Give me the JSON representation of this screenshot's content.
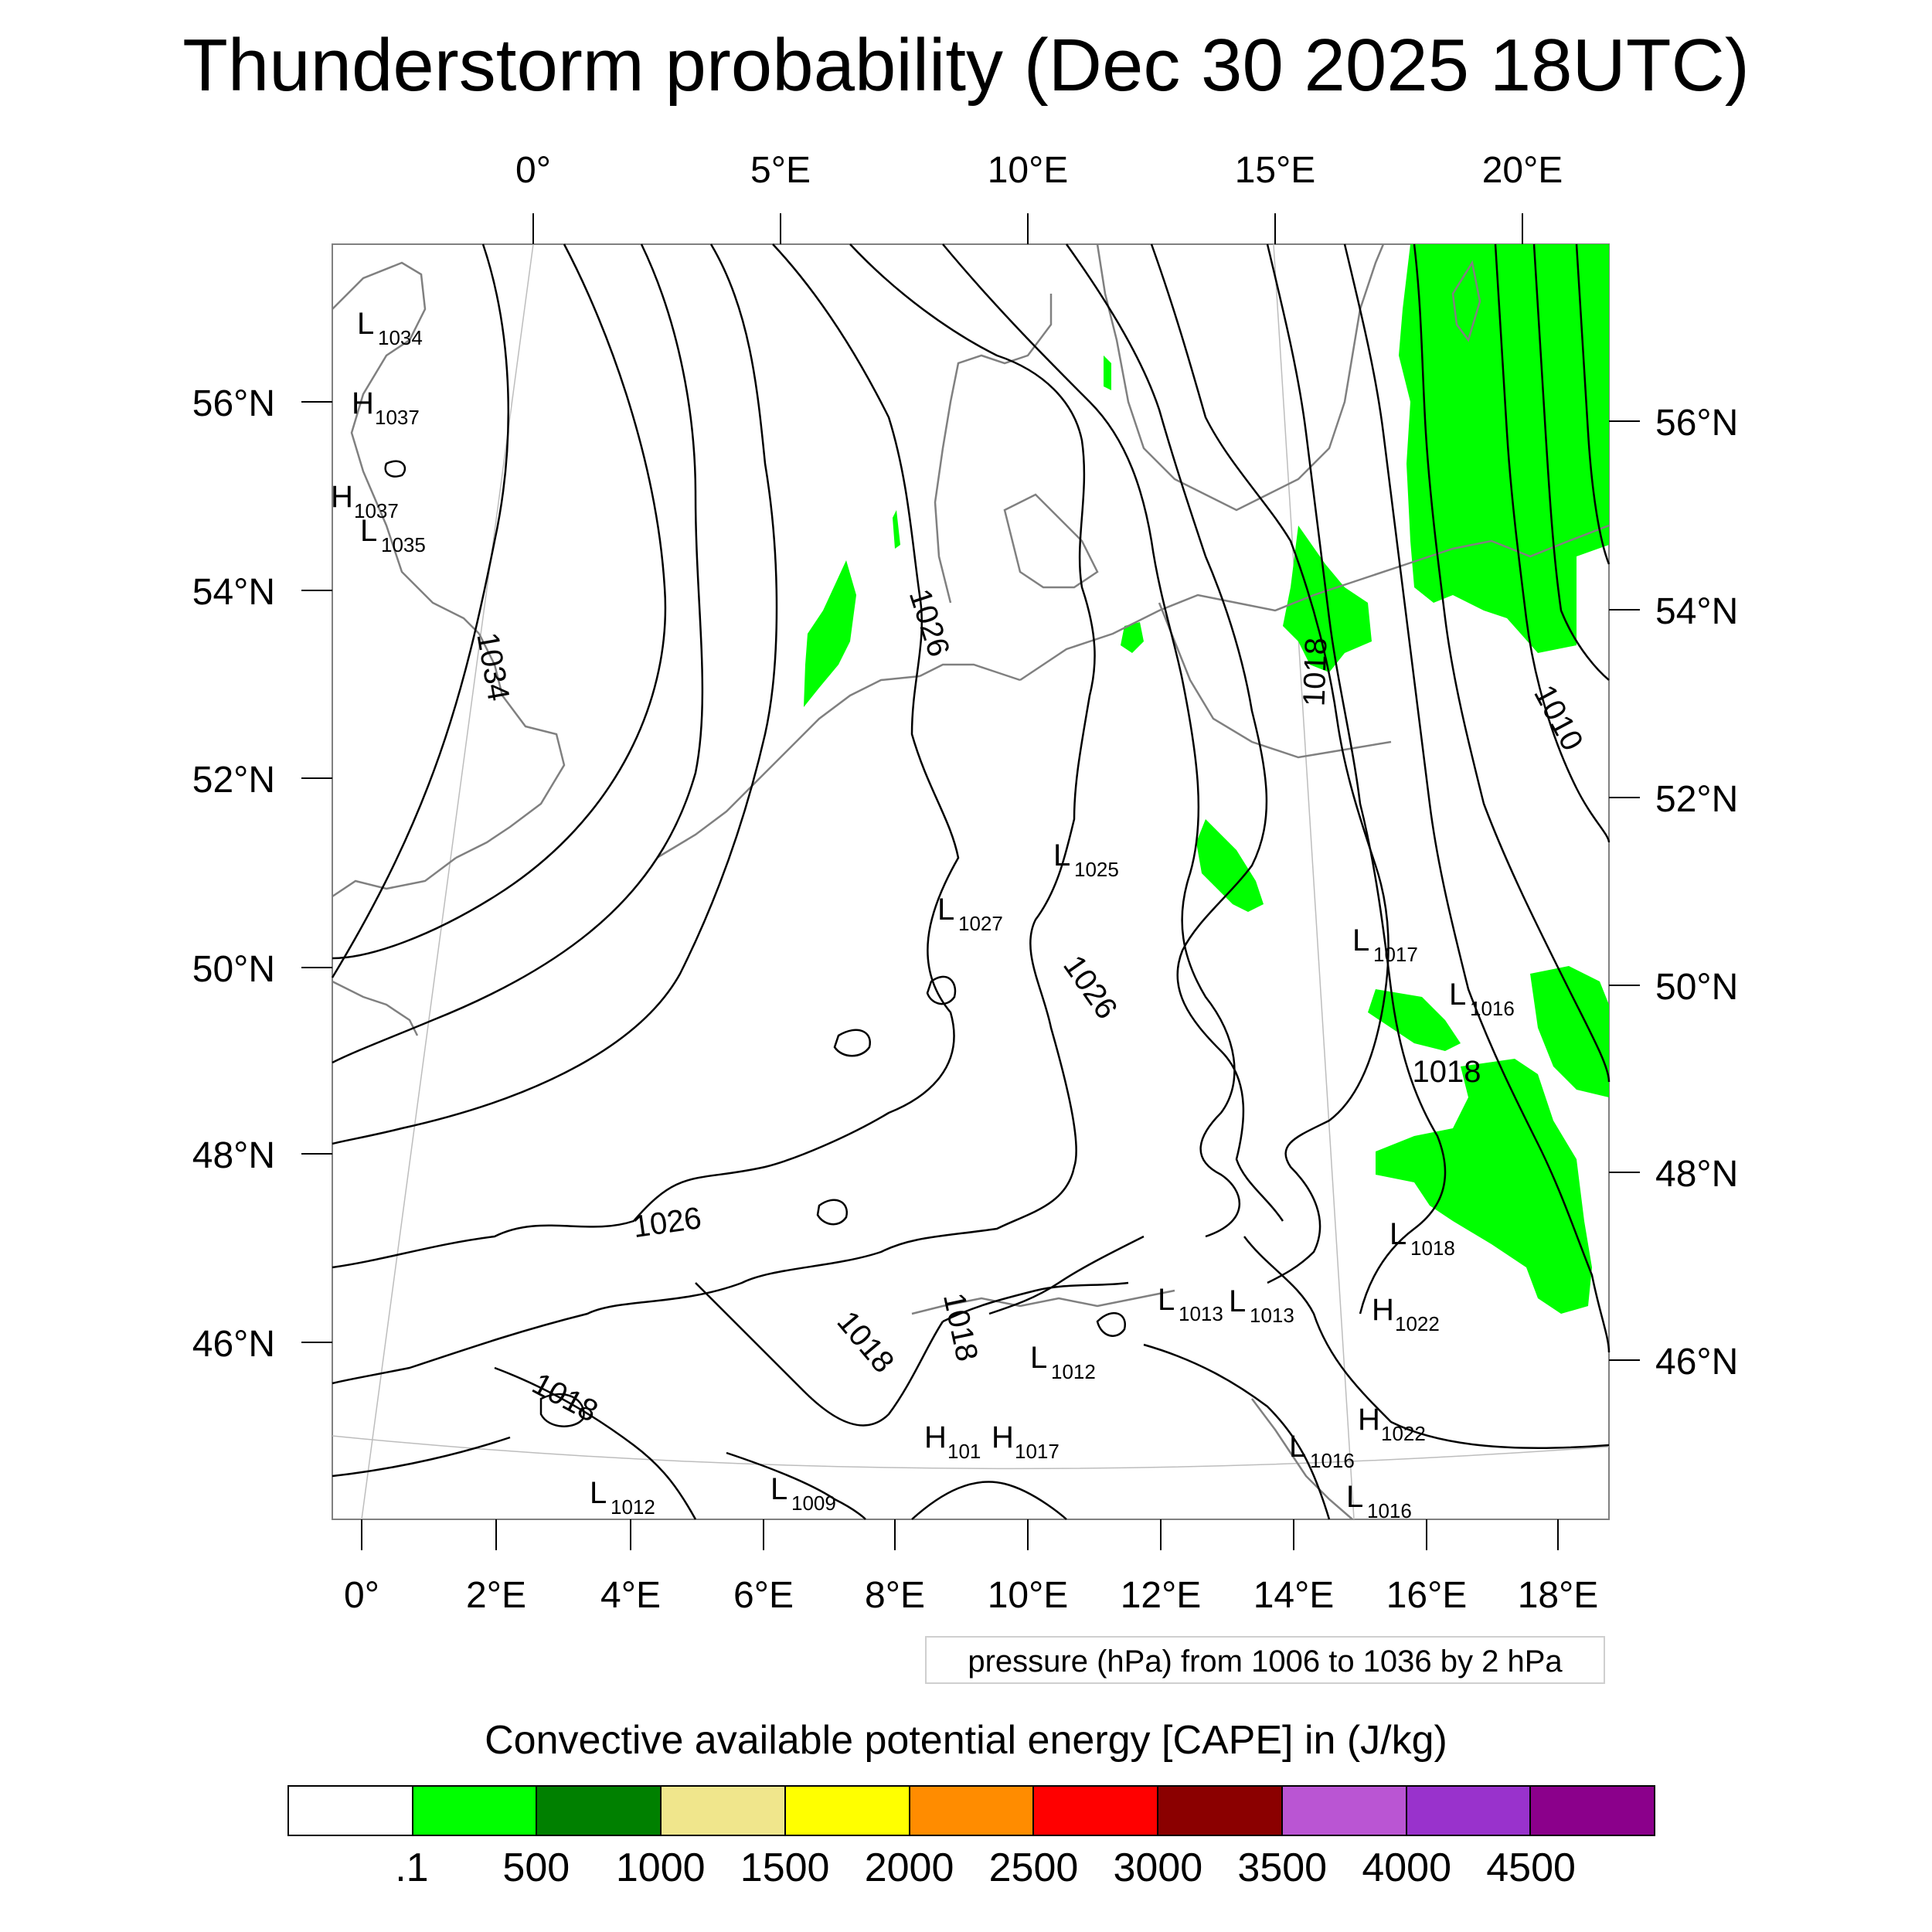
{
  "title": "Thunderstorm probability (Dec 30 2025 18UTC)",
  "top_lon_labels": [
    "0°",
    "5°E",
    "10°E",
    "15°E",
    "20°E"
  ],
  "bottom_lon_labels": [
    "0°",
    "2°E",
    "4°E",
    "6°E",
    "8°E",
    "10°E",
    "12°E",
    "14°E",
    "16°E",
    "18°E"
  ],
  "left_lat_labels": [
    "56°N",
    "54°N",
    "52°N",
    "50°N",
    "48°N",
    "46°N"
  ],
  "right_lat_labels": [
    "56°N",
    "54°N",
    "52°N",
    "50°N",
    "48°N",
    "46°N"
  ],
  "isobar_labels": [
    "1034",
    "1026",
    "1026",
    "1026",
    "1018",
    "1010",
    "1018",
    "1018",
    "1018",
    "1018"
  ],
  "pressure_centers": [
    {
      "type": "L",
      "value": "1034"
    },
    {
      "type": "H",
      "value": "1037"
    },
    {
      "type": "H",
      "value": "1037"
    },
    {
      "type": "L",
      "value": "1035"
    },
    {
      "type": "L",
      "value": "1025"
    },
    {
      "type": "L",
      "value": "1027"
    },
    {
      "type": "L",
      "value": "1017"
    },
    {
      "type": "L",
      "value": "1016"
    },
    {
      "type": "L",
      "value": "1018"
    },
    {
      "type": "L",
      "value": "1013"
    },
    {
      "type": "L",
      "value": "1013"
    },
    {
      "type": "H",
      "value": "1022"
    },
    {
      "type": "L",
      "value": "1012"
    },
    {
      "type": "H",
      "value": "1022"
    },
    {
      "type": "H",
      "value": "101"
    },
    {
      "type": "H",
      "value": "1017"
    },
    {
      "type": "L",
      "value": "1016"
    },
    {
      "type": "L",
      "value": "1012"
    },
    {
      "type": "L",
      "value": "1009"
    },
    {
      "type": "L",
      "value": "1016"
    }
  ],
  "pressure_note": "pressure (hPa) from 1006 to 1036 by 2 hPa",
  "colorbar": {
    "title": "Convective available potential energy [CAPE] in (J/kg)",
    "colors": [
      "#ffffff",
      "#00ff00",
      "#008000",
      "#f0e68c",
      "#ffff00",
      "#ff8c00",
      "#ff0000",
      "#8b0000",
      "#ba55d3",
      "#9932cc",
      "#8b008b"
    ],
    "labels": [
      ".1",
      "500",
      "1000",
      "1500",
      "2000",
      "2500",
      "3000",
      "3500",
      "4000",
      "4500"
    ]
  },
  "colors": {
    "cape_fill": "#00ff00",
    "isobar": "#000000",
    "coastline": "#808080",
    "frame": "#808080"
  }
}
